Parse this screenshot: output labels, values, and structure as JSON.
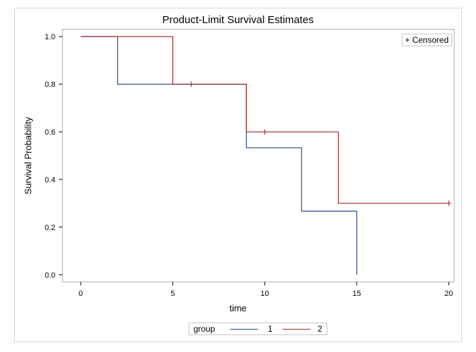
{
  "chart_data": {
    "type": "line",
    "title": "Product-Limit Survival Estimates",
    "xlabel": "time",
    "ylabel": "Survival Probability",
    "xlim": [
      -1,
      20.3
    ],
    "ylim": [
      -0.03,
      1.03
    ],
    "x_ticks": [
      0,
      5,
      10,
      15,
      20
    ],
    "x_tick_labels": [
      "0",
      "5",
      "10",
      "15",
      "20"
    ],
    "y_ticks": [
      0.0,
      0.2,
      0.4,
      0.6,
      0.8,
      1.0
    ],
    "y_tick_labels": [
      "0.0",
      "0.2",
      "0.4",
      "0.6",
      "0.8",
      "1.0"
    ],
    "grid": false,
    "step": true,
    "censored_legend": "+ Censored",
    "legend": {
      "title": "group",
      "placement": "bottom"
    },
    "series": [
      {
        "name": "1",
        "color": "#2f4a8b",
        "x": [
          0,
          2,
          9,
          12,
          15
        ],
        "values": [
          1.0,
          0.8,
          0.533,
          0.267,
          0.0
        ],
        "censored": [
          {
            "x": 6,
            "y": 0.8
          }
        ]
      },
      {
        "name": "2",
        "color": "#9b2a2a",
        "x": [
          0,
          5,
          9,
          14,
          20
        ],
        "values": [
          1.0,
          0.8,
          0.6,
          0.3,
          0.3
        ],
        "censored": [
          {
            "x": 10,
            "y": 0.6
          },
          {
            "x": 20,
            "y": 0.3
          }
        ]
      }
    ]
  }
}
